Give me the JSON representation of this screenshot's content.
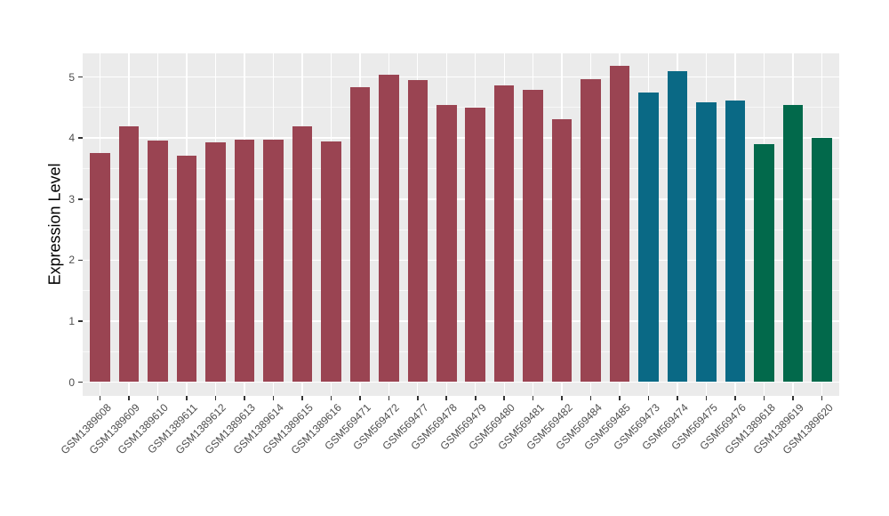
{
  "figure": {
    "background": "#FFFFFF",
    "panel_background": "#EBEBEB",
    "grid_major_color": "#FFFFFF",
    "grid_minor_color": "rgba(255,255,255,0.65)",
    "tick_color": "#333333",
    "axis_text_color": "#4D4D4D",
    "axis_title_color": "#000000"
  },
  "chart_data": {
    "type": "bar",
    "title": "",
    "xlabel": "",
    "ylabel": "Expression Level",
    "ylim": [
      -0.23,
      5.4
    ],
    "yticks": [
      0,
      1,
      2,
      3,
      4,
      5
    ],
    "grid": "major+minor horizontal, major vertical at category centers",
    "legend_position": "none",
    "categories": [
      "GSM1389608",
      "GSM1389609",
      "GSM1389610",
      "GSM1389611",
      "GSM1389612",
      "GSM1389613",
      "GSM1389614",
      "GSM1389615",
      "GSM1389616",
      "GSM569471",
      "GSM569472",
      "GSM569477",
      "GSM569478",
      "GSM569479",
      "GSM569480",
      "GSM569481",
      "GSM569482",
      "GSM569484",
      "GSM569485",
      "GSM569473",
      "GSM569474",
      "GSM569475",
      "GSM569476",
      "GSM1389618",
      "GSM1389619",
      "GSM1389620"
    ],
    "values": [
      3.75,
      4.19,
      3.96,
      3.71,
      3.93,
      3.97,
      3.97,
      4.19,
      3.94,
      4.83,
      5.04,
      4.95,
      4.55,
      4.5,
      4.86,
      4.79,
      4.31,
      4.97,
      5.18,
      4.75,
      5.1,
      4.59,
      4.62,
      3.9,
      4.55,
      4.01
    ],
    "bar_groups": [
      "maroon",
      "maroon",
      "maroon",
      "maroon",
      "maroon",
      "maroon",
      "maroon",
      "maroon",
      "maroon",
      "maroon",
      "maroon",
      "maroon",
      "maroon",
      "maroon",
      "maroon",
      "maroon",
      "maroon",
      "maroon",
      "maroon",
      "teal",
      "teal",
      "teal",
      "teal",
      "green",
      "green",
      "green"
    ],
    "group_colors": {
      "maroon": "#9A4452",
      "teal": "#0A6985",
      "green": "#02694B"
    }
  }
}
